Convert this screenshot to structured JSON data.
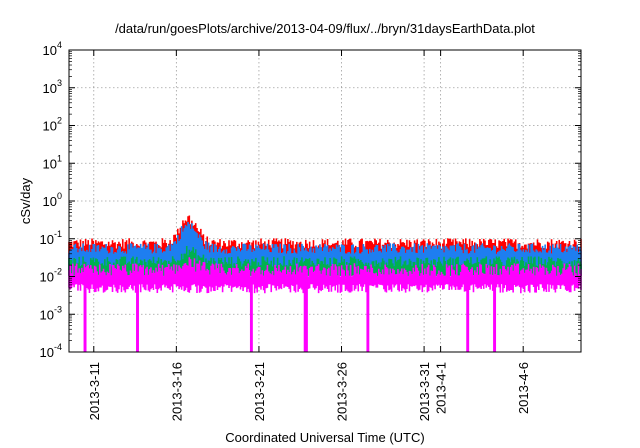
{
  "chart_data": {
    "type": "area",
    "title": "/data/run/goesPlots/archive/2013-04-09/flux/../bryn/31daysEarthData.plot",
    "xlabel": "Coordinated Universal Time (UTC)",
    "ylabel": "cSv/day",
    "y_scale": "log",
    "ylim": [
      0.0001,
      10000
    ],
    "xlim": [
      "2013-03-09T12:00",
      "2013-04-09T12:00"
    ],
    "grid": true,
    "legend": "none",
    "y_ticks": [
      {
        "value": 0.0001,
        "mantissa": "10",
        "exp": "-4"
      },
      {
        "value": 0.001,
        "mantissa": "10",
        "exp": "-3"
      },
      {
        "value": 0.01,
        "mantissa": "10",
        "exp": "-2"
      },
      {
        "value": 0.1,
        "mantissa": "10",
        "exp": "-1"
      },
      {
        "value": 1,
        "mantissa": "10",
        "exp": "0"
      },
      {
        "value": 10,
        "mantissa": "10",
        "exp": "1"
      },
      {
        "value": 100,
        "mantissa": "10",
        "exp": "2"
      },
      {
        "value": 1000,
        "mantissa": "10",
        "exp": "3"
      },
      {
        "value": 10000,
        "mantissa": "10",
        "exp": "4"
      }
    ],
    "x_ticks": [
      {
        "date": "2013-03-11T00:00",
        "label": "2013-3-11"
      },
      {
        "date": "2013-03-16T00:00",
        "label": "2013-3-16"
      },
      {
        "date": "2013-03-21T00:00",
        "label": "2013-3-21"
      },
      {
        "date": "2013-03-26T00:00",
        "label": "2013-3-26"
      },
      {
        "date": "2013-03-31T00:00",
        "label": "2013-3-31"
      },
      {
        "date": "2013-04-01T00:00",
        "label": "2013-4-1"
      },
      {
        "date": "2013-04-06T00:00",
        "label": "2013-4-6"
      }
    ],
    "series": [
      {
        "color": "#ff0000",
        "typical_max": 0.075,
        "peak_date": "2013-03-16T18:00",
        "peak_value": 0.42
      },
      {
        "color": "#1e7ef0",
        "typical_max": 0.055,
        "peak_date": "2013-03-16T18:00",
        "peak_value": 0.28
      },
      {
        "color": "#00b050",
        "typical_max": 0.025,
        "peak_date": "2013-03-16T18:00",
        "peak_value": 0.05
      },
      {
        "color": "#ff00ff",
        "typical_max": 0.015,
        "typical_min": 0.0045,
        "peak_date": "2013-03-16T18:00",
        "peak_value": 0.025
      }
    ],
    "dropouts": [
      "2013-03-10T12:00",
      "2013-03-13T16:00",
      "2013-03-20T13:00",
      "2013-03-23T20:00",
      "2013-03-27T14:00",
      "2013-04-02T15:00",
      "2013-04-04T06:00"
    ]
  }
}
